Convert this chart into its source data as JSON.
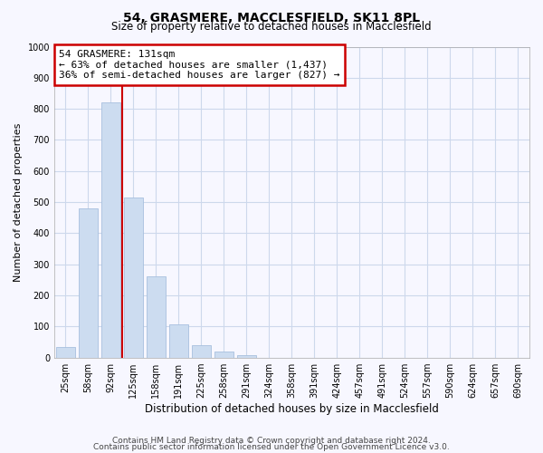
{
  "title": "54, GRASMERE, MACCLESFIELD, SK11 8PL",
  "subtitle": "Size of property relative to detached houses in Macclesfield",
  "xlabel": "Distribution of detached houses by size in Macclesfield",
  "ylabel": "Number of detached properties",
  "bar_labels": [
    "25sqm",
    "58sqm",
    "92sqm",
    "125sqm",
    "158sqm",
    "191sqm",
    "225sqm",
    "258sqm",
    "291sqm",
    "324sqm",
    "358sqm",
    "391sqm",
    "424sqm",
    "457sqm",
    "491sqm",
    "524sqm",
    "557sqm",
    "590sqm",
    "624sqm",
    "657sqm",
    "690sqm"
  ],
  "bar_values": [
    33,
    480,
    820,
    515,
    262,
    108,
    40,
    18,
    8,
    0,
    0,
    0,
    0,
    0,
    0,
    0,
    0,
    0,
    0,
    0,
    0
  ],
  "bar_color": "#ccdcf0",
  "bar_edge_color": "#a8c0de",
  "vline_x_idx": 2.5,
  "vline_color": "#cc0000",
  "annotation_line1": "54 GRASMERE: 131sqm",
  "annotation_line2": "← 63% of detached houses are smaller (1,437)",
  "annotation_line3": "36% of semi-detached houses are larger (827) →",
  "annotation_box_color": "white",
  "annotation_box_edge_color": "#cc0000",
  "ylim": [
    0,
    1000
  ],
  "yticks": [
    0,
    100,
    200,
    300,
    400,
    500,
    600,
    700,
    800,
    900,
    1000
  ],
  "footer_line1": "Contains HM Land Registry data © Crown copyright and database right 2024.",
  "footer_line2": "Contains public sector information licensed under the Open Government Licence v3.0.",
  "bg_color": "#f7f7ff",
  "grid_color": "#cdd8ec",
  "title_fontsize": 10,
  "subtitle_fontsize": 8.5,
  "xlabel_fontsize": 8.5,
  "ylabel_fontsize": 8,
  "tick_fontsize": 7,
  "footer_fontsize": 6.5,
  "ann_fontsize": 8
}
